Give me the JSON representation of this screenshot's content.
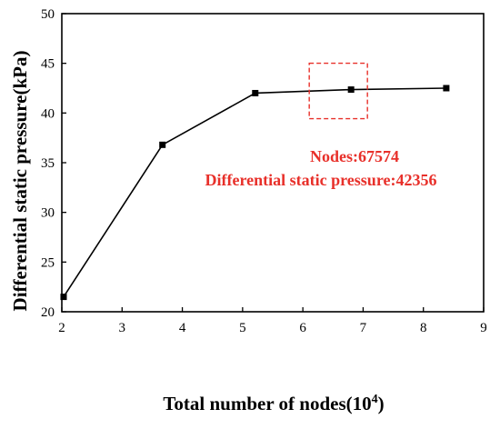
{
  "chart_data": {
    "type": "line",
    "xlabel": "Total number of nodes(10",
    "xlabel_superscript": "4",
    "xlabel_suffix": ")",
    "ylabel": "Differential static pressure(kPa)",
    "xlim": [
      2,
      9
    ],
    "ylim": [
      20,
      50
    ],
    "xticks": [
      2,
      3,
      4,
      5,
      6,
      7,
      8,
      9
    ],
    "yticks": [
      20,
      25,
      30,
      35,
      40,
      45,
      50
    ],
    "series": [
      {
        "x": [
          2.03,
          3.67,
          5.21,
          6.8,
          8.38
        ],
        "y": [
          21.5,
          36.8,
          42.0,
          42.356,
          42.5
        ],
        "color": "#000000",
        "marker": "square"
      }
    ],
    "highlight_point_x": 6.8,
    "highlight_point_y": 42.356,
    "annotation": {
      "lines": [
        "Nodes:67574",
        "Differential static pressure:42356"
      ],
      "color": "#e8302a"
    },
    "grid": false,
    "legend": "none"
  }
}
